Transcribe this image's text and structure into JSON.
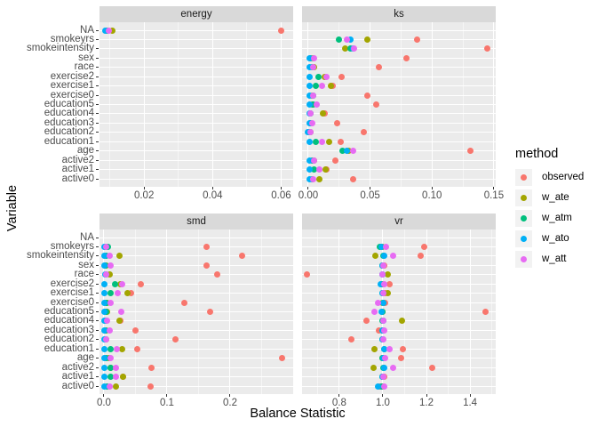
{
  "figure": {
    "x_title": "Balance Statistic",
    "y_title": "Variable"
  },
  "legend": {
    "title": "method",
    "entries": [
      {
        "label": "observed",
        "color": "#F8766D"
      },
      {
        "label": "w_ate",
        "color": "#A3A500"
      },
      {
        "label": "w_atm",
        "color": "#00BF7D"
      },
      {
        "label": "w_ato",
        "color": "#00B0F6"
      },
      {
        "label": "w_att",
        "color": "#E76BF3"
      }
    ]
  },
  "chart_data": {
    "type": "scatter",
    "title": "",
    "xlabel": "Balance Statistic",
    "ylabel": "Variable",
    "grid": true,
    "legend_position": "right",
    "categories": [
      "NA",
      "smokeyrs",
      "smokeintensity",
      "sex",
      "race",
      "exercise2",
      "exercise1",
      "exercise0",
      "education5",
      "education4",
      "education3",
      "education2",
      "education1",
      "age",
      "active2",
      "active1",
      "active0"
    ],
    "series_order": [
      "observed",
      "w_ate",
      "w_atm",
      "w_ato",
      "w_att"
    ],
    "colors": {
      "observed": "#F8766D",
      "w_ate": "#A3A500",
      "w_atm": "#00BF7D",
      "w_ato": "#00B0F6",
      "w_att": "#E76BF3"
    },
    "theme": {
      "panel_bg": "#EBEBEB",
      "strip_bg": "#D9D9D9",
      "grid": "#FFFFFF",
      "axis_text": "#4D4D4D",
      "strip_text": "#1A1A1A"
    },
    "facets": [
      {
        "name": "energy",
        "xlim": [
          0.007,
          0.0635
        ],
        "ticks": [
          0.02,
          0.04,
          0.06
        ],
        "tick_labels": [
          "0.02",
          "0.04",
          "0.06"
        ],
        "minor": [
          0.01,
          0.03,
          0.05
        ],
        "values": {
          "NA": [
            0.06,
            0.0108,
            0.0092,
            0.0086,
            0.0098
          ]
        }
      },
      {
        "name": "ks",
        "xlim": [
          -0.005,
          0.1515
        ],
        "ticks": [
          0.0,
          0.05,
          0.1,
          0.15
        ],
        "tick_labels": [
          "0.00",
          "0.05",
          "0.10",
          "0.15"
        ],
        "minor": [
          0.025,
          0.075,
          0.125
        ],
        "values": {
          "smokeyrs": [
            0.088,
            0.048,
            0.025,
            0.034,
            0.031
          ],
          "smokeintensity": [
            0.145,
            0.03,
            0.034,
            0.036,
            0.037
          ],
          "sex": [
            0.079,
            0.004,
            0.002,
            0.001,
            0.005
          ],
          "race": [
            0.057,
            0.005,
            0.003,
            0.001,
            0.004
          ],
          "exercise2": [
            0.027,
            0.013,
            0.008,
            0.001,
            0.015
          ],
          "exercise1": [
            0.02,
            0.018,
            0.006,
            0.001,
            0.011
          ],
          "exercise0": [
            0.048,
            0.003,
            0.004,
            0.001,
            0.004
          ],
          "education5": [
            0.055,
            0.003,
            0.004,
            0.001,
            0.007
          ],
          "education4": [
            0.013,
            0.012,
            0.002,
            0.001,
            0.002
          ],
          "education3": [
            0.023,
            0.002,
            0.002,
            0.001,
            0.003
          ],
          "education2": [
            0.045,
            0.002,
            0.001,
            0.0,
            0.002
          ],
          "education1": [
            0.026,
            0.017,
            0.006,
            0.001,
            0.011
          ],
          "age": [
            0.131,
            0.033,
            0.028,
            0.031,
            0.036
          ],
          "active2": [
            0.022,
            0.005,
            0.003,
            0.001,
            0.005
          ],
          "active1": [
            0.015,
            0.014,
            0.005,
            0.001,
            0.009
          ],
          "active0": [
            0.036,
            0.009,
            0.003,
            0.001,
            0.004
          ]
        }
      },
      {
        "name": "smd",
        "xlim": [
          -0.007,
          0.3
        ],
        "ticks": [
          0.0,
          0.1,
          0.2
        ],
        "tick_labels": [
          "0.0",
          "0.1",
          "0.2"
        ],
        "minor": [
          0.05,
          0.15,
          0.25
        ],
        "values": {
          "smokeyrs": [
            0.162,
            0.004,
            0.006,
            0.001,
            0.003
          ],
          "smokeintensity": [
            0.219,
            0.025,
            0.004,
            0.001,
            0.009
          ],
          "sex": [
            0.162,
            0.003,
            0.002,
            0.001,
            0.01
          ],
          "race": [
            0.18,
            0.009,
            0.004,
            0.002,
            0.003
          ],
          "exercise2": [
            0.058,
            0.026,
            0.017,
            0.001,
            0.029
          ],
          "exercise1": [
            0.043,
            0.037,
            0.011,
            0.001,
            0.022
          ],
          "exercise0": [
            0.127,
            0.005,
            0.003,
            0.001,
            0.011
          ],
          "education5": [
            0.168,
            0.005,
            0.004,
            0.001,
            0.027
          ],
          "education4": [
            0.026,
            0.025,
            0.003,
            0.001,
            0.005
          ],
          "education3": [
            0.05,
            0.003,
            0.002,
            0.001,
            0.009
          ],
          "education2": [
            0.114,
            0.003,
            0.002,
            0.001,
            0.004
          ],
          "education1": [
            0.053,
            0.029,
            0.011,
            0.001,
            0.021
          ],
          "age": [
            0.283,
            0.008,
            0.004,
            0.001,
            0.01
          ],
          "active2": [
            0.076,
            0.01,
            0.01,
            0.001,
            0.019
          ],
          "active1": [
            0.031,
            0.03,
            0.01,
            0.001,
            0.019
          ],
          "active0": [
            0.074,
            0.019,
            0.005,
            0.001,
            0.009
          ]
        }
      },
      {
        "name": "vr",
        "xlim": [
          0.629,
          1.518
        ],
        "ticks": [
          0.8,
          1.0,
          1.2,
          1.4
        ],
        "tick_labels": [
          "0.8",
          "1.0",
          "1.2",
          "1.4"
        ],
        "minor": [
          0.7,
          0.9,
          1.1,
          1.3,
          1.5
        ],
        "values": {
          "smokeyrs": [
            1.19,
            0.998,
            0.985,
            0.993,
            1.013
          ],
          "smokeintensity": [
            1.172,
            0.967,
            1.004,
            1.006,
            1.047
          ],
          "sex": [
            1.008,
            1.0,
            0.999,
            1.0,
            1.003
          ],
          "race": [
            0.653,
            1.023,
            0.999,
            0.997,
            0.999
          ],
          "exercise2": [
            1.029,
            1.0,
            0.996,
            0.991,
            1.005
          ],
          "exercise1": [
            1.01,
            1.022,
            1.0,
            0.999,
            1.003
          ],
          "exercise0": [
            1.012,
            1.0,
            1.004,
            1.003,
            0.978
          ],
          "education5": [
            1.47,
            1.0,
            0.998,
            0.996,
            0.962
          ],
          "education4": [
            0.925,
            1.089,
            1.0,
            1.001,
            1.003
          ],
          "education3": [
            0.983,
            1.0,
            1.0,
            0.999,
            1.006
          ],
          "education2": [
            0.857,
            1.0,
            1.0,
            0.998,
            1.003
          ],
          "education1": [
            1.09,
            0.962,
            1.005,
            1.007,
            1.032
          ],
          "age": [
            1.082,
            1.0,
            0.998,
            1.002,
            1.012
          ],
          "active2": [
            1.228,
            0.959,
            1.004,
            1.006,
            1.047
          ],
          "active1": [
            1.008,
            1.0,
            1.0,
            1.0,
            1.004
          ],
          "active0": [
            0.986,
            1.0,
            0.995,
            0.978,
            1.005
          ]
        }
      }
    ]
  }
}
